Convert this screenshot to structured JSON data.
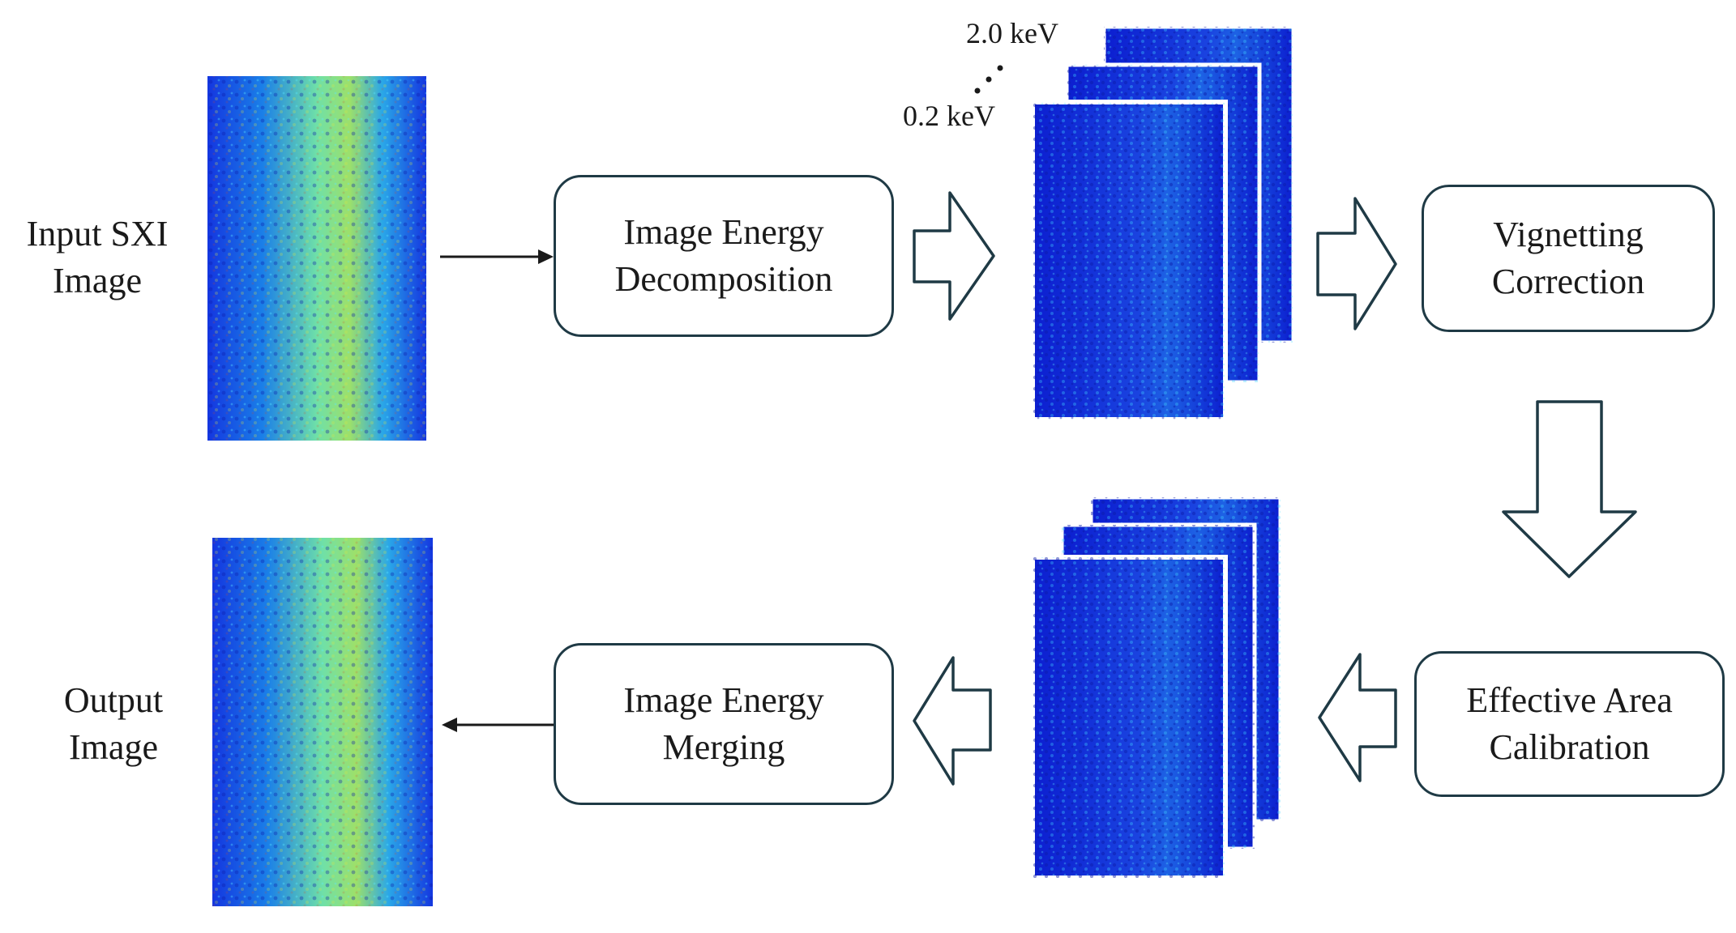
{
  "input_label": "Input SXI\nImage",
  "output_label": "Output\nImage",
  "steps": {
    "decomposition": "Image Energy\nDecomposition",
    "vignetting": "Vignetting\nCorrection",
    "calibration": "Effective Area\nCalibration",
    "merging": "Image Energy\nMerging"
  },
  "energy_high": "2.0 keV",
  "energy_low": "0.2 keV",
  "colors": {
    "box_border": "#1f3a45",
    "arrow": "#1f3a45",
    "heatmap_low": "#0a1fd6",
    "heatmap_mid": "#1fb3e6",
    "heatmap_high": "#d4e82a"
  }
}
